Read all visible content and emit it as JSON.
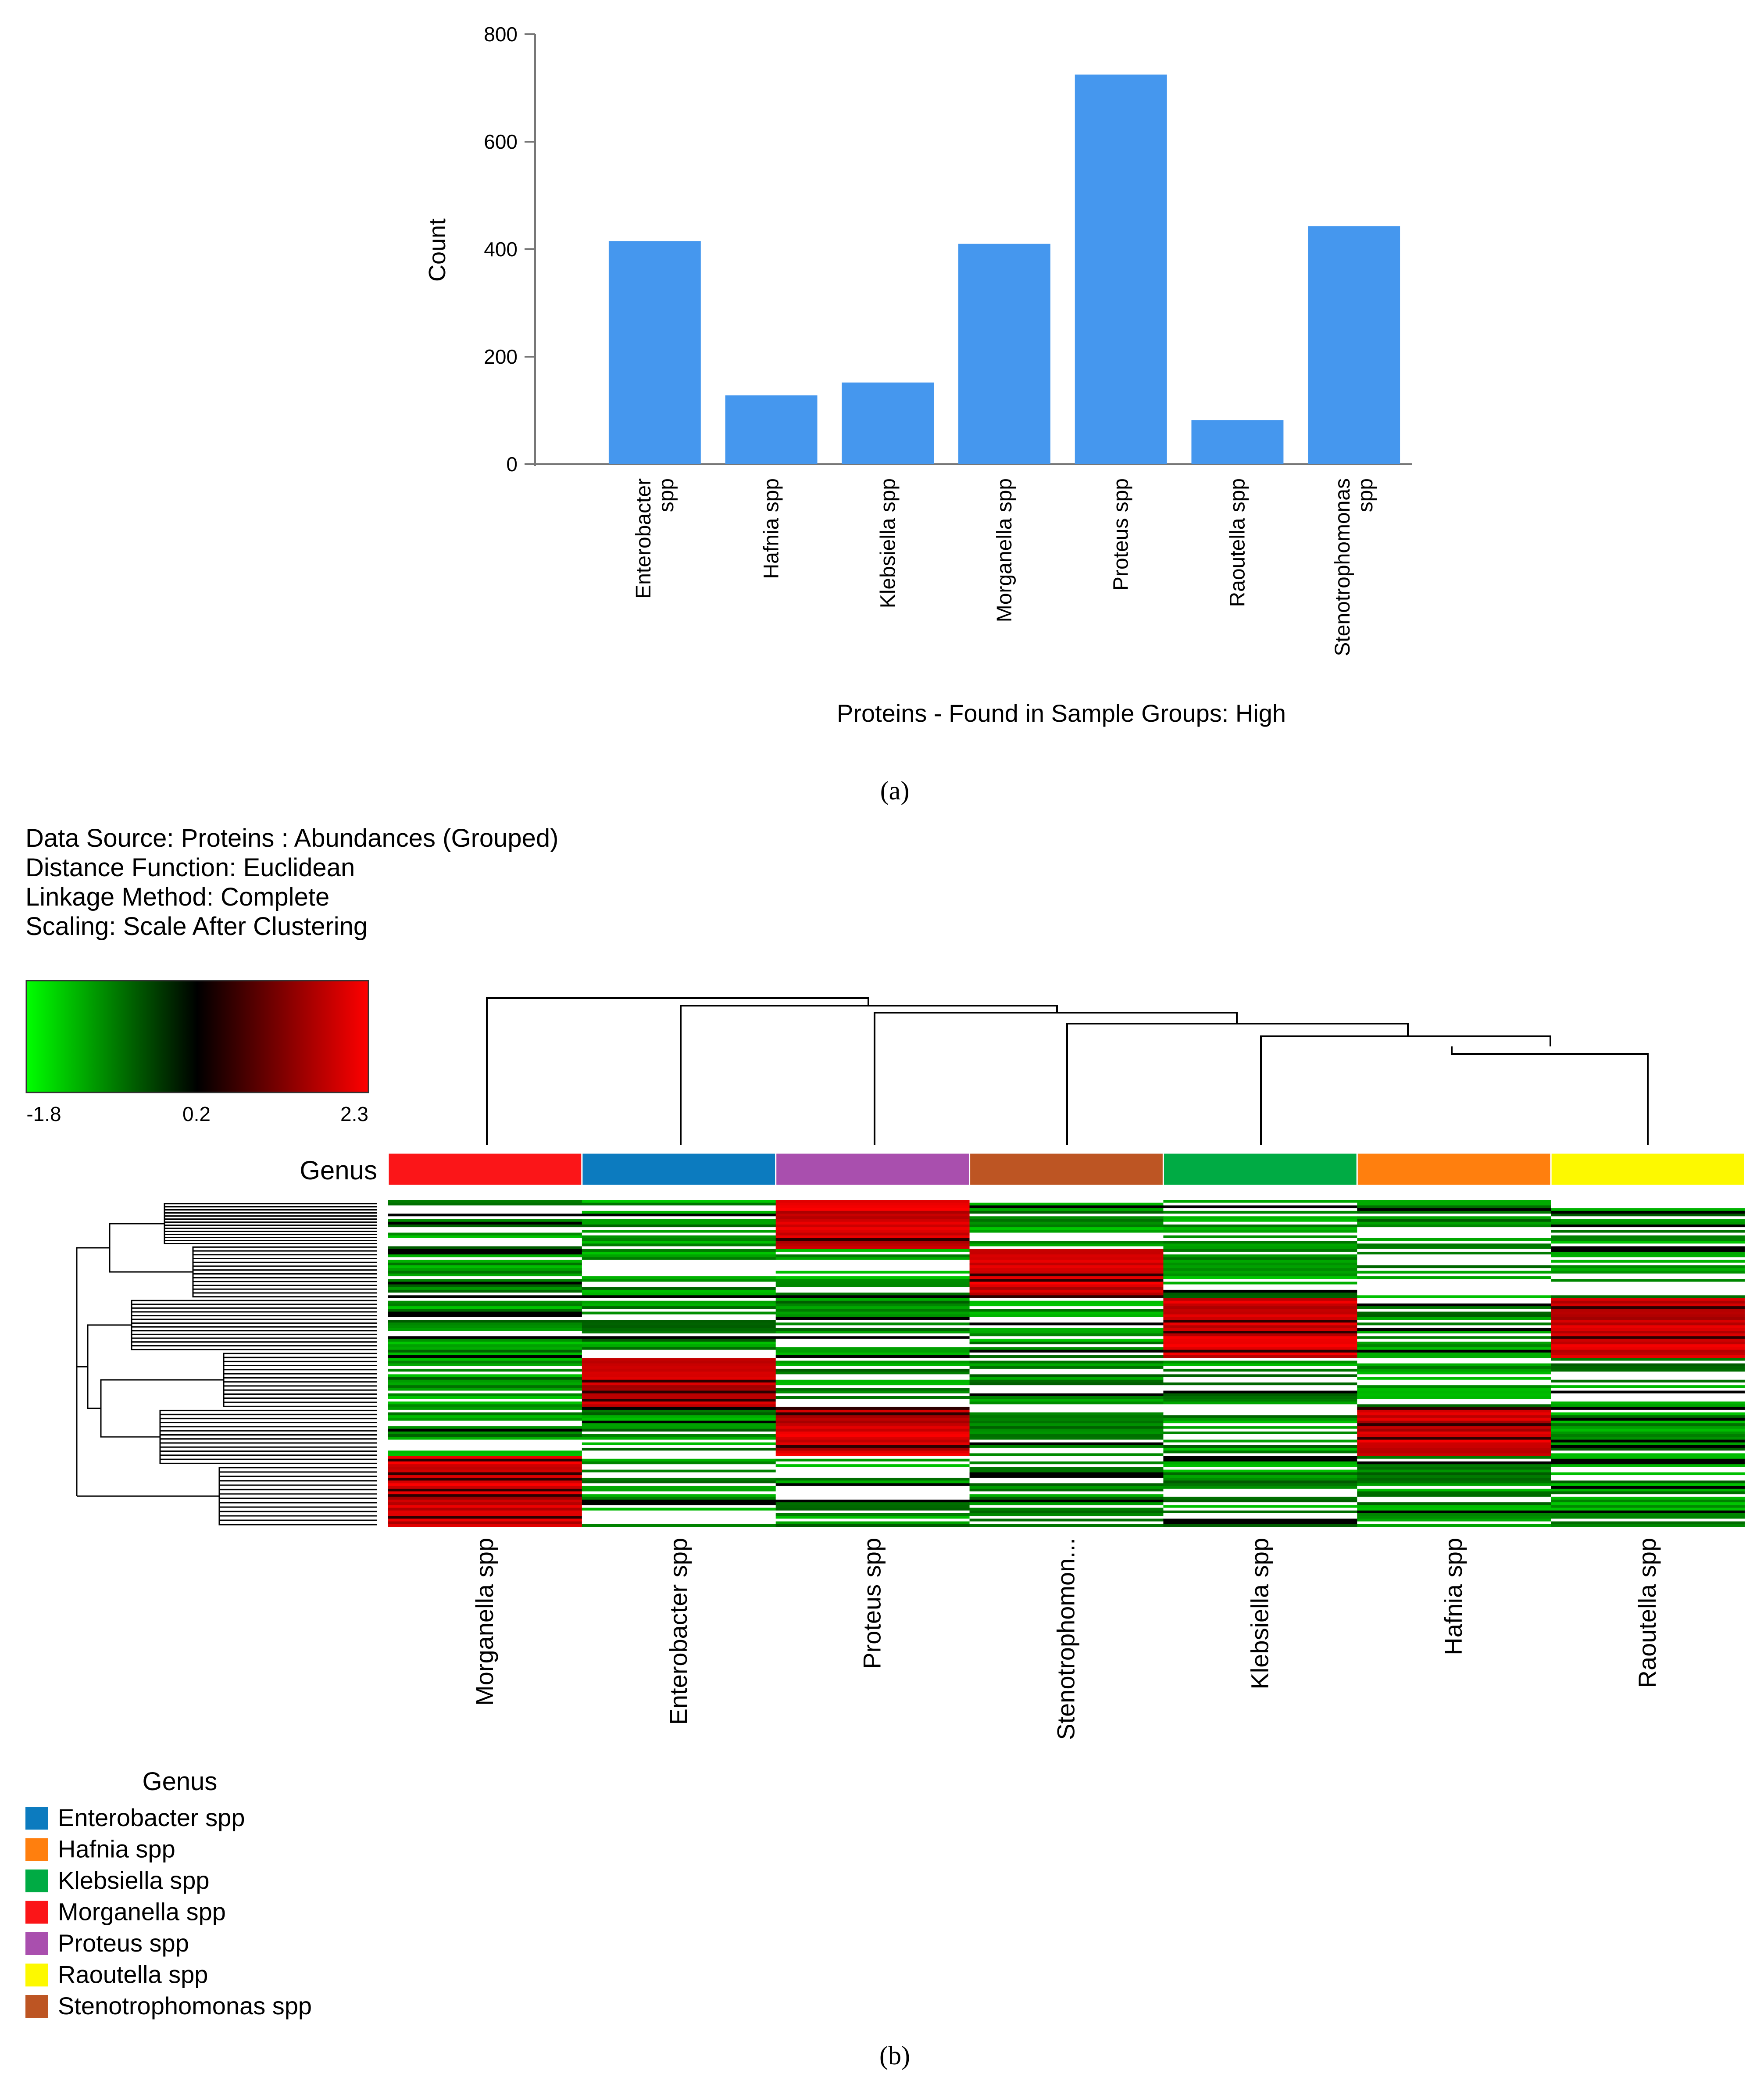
{
  "panel_a": {
    "label": "(a)",
    "chart_data": {
      "type": "bar",
      "title": "",
      "xlabel": "Proteins - Found in Sample Groups: High",
      "ylabel": "Count",
      "ylim": [
        0,
        800
      ],
      "yticks": [
        0,
        200,
        400,
        600,
        800
      ],
      "categories": [
        [
          "Enterobacter",
          "spp"
        ],
        [
          "Hafnia spp"
        ],
        [
          "Klebsiella spp"
        ],
        [
          "Morganella spp"
        ],
        [
          "Proteus spp"
        ],
        [
          "Raoutella spp"
        ],
        [
          "Stenotrophomonas",
          "spp"
        ]
      ],
      "values": [
        415,
        128,
        152,
        410,
        725,
        82,
        443
      ],
      "bar_color": "#4597ee"
    }
  },
  "panel_b": {
    "label": "(b)",
    "info": [
      "Data Source: Proteins : Abundances (Grouped)",
      "Distance Function: Euclidean",
      "Linkage Method: Complete",
      "Scaling: Scale After Clustering"
    ],
    "colorbar": {
      "min_label": "-1.8",
      "mid_label": "0.2",
      "max_label": "2.3",
      "colors": [
        "#00ff00",
        "#000000",
        "#ff0000"
      ]
    },
    "genus_row_label": "Genus",
    "chart_data": {
      "type": "heatmap",
      "columns": [
        "Morganella spp",
        "Enterobacter spp",
        "Proteus spp",
        "Stenotrophomon...",
        "Klebsiella spp",
        "Hafnia spp",
        "Raoutella spp"
      ],
      "column_colors": [
        "#fb1518",
        "#0c7bbf",
        "#a94fae",
        "#bd5523",
        "#00ab44",
        "#ff7f0e",
        "#fdf900"
      ],
      "value_range": [
        -1.8,
        2.3
      ],
      "row_blocks": [
        {
          "rows": "top cluster",
          "high_columns": [
            "Proteus spp"
          ]
        },
        {
          "rows": "cluster 2",
          "high_columns": [
            "Stenotrophomon..."
          ]
        },
        {
          "rows": "cluster 3",
          "high_columns": [
            "Raoutella spp",
            "Klebsiella spp"
          ]
        },
        {
          "rows": "cluster 4",
          "high_columns": [
            "Enterobacter spp"
          ]
        },
        {
          "rows": "cluster 5",
          "high_columns": [
            "Hafnia spp"
          ]
        },
        {
          "rows": "bottom cluster",
          "high_columns": [
            "Morganella spp"
          ]
        }
      ]
    },
    "legend": {
      "title": "Genus",
      "items": [
        {
          "label": "Enterobacter spp",
          "color": "#0c7bbf"
        },
        {
          "label": "Hafnia spp",
          "color": "#ff7f0e"
        },
        {
          "label": "Klebsiella spp",
          "color": "#00ab44"
        },
        {
          "label": "Morganella spp",
          "color": "#fb1518"
        },
        {
          "label": "Proteus spp",
          "color": "#a94fae"
        },
        {
          "label": "Raoutella spp",
          "color": "#fdf900"
        },
        {
          "label": "Stenotrophomonas spp",
          "color": "#bd5523"
        }
      ]
    }
  }
}
